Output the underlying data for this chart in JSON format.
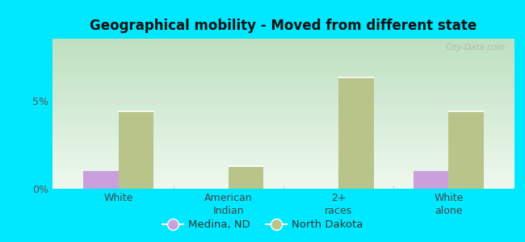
{
  "title": "Geographical mobility - Moved from different state",
  "categories": [
    "White",
    "American\nIndian",
    "2+\nraces",
    "White\nalone"
  ],
  "medina_values": [
    1.0,
    0.0,
    0.0,
    1.0
  ],
  "nd_values": [
    4.4,
    1.3,
    6.3,
    4.4
  ],
  "medina_color": "#c9a0dc",
  "nd_color": "#b8c48a",
  "ylim": [
    0,
    8.5
  ],
  "yticks": [
    0,
    5
  ],
  "ytick_labels": [
    "0%",
    "5%"
  ],
  "bg_top_left": "#c8e8d0",
  "bg_top_right": "#d0e8d8",
  "bg_bottom": "#f0f8f0",
  "outer_bg": "#00e8ff",
  "bar_width": 0.32,
  "legend_labels": [
    "Medina, ND",
    "North Dakota"
  ],
  "watermark": "City-Data.com"
}
